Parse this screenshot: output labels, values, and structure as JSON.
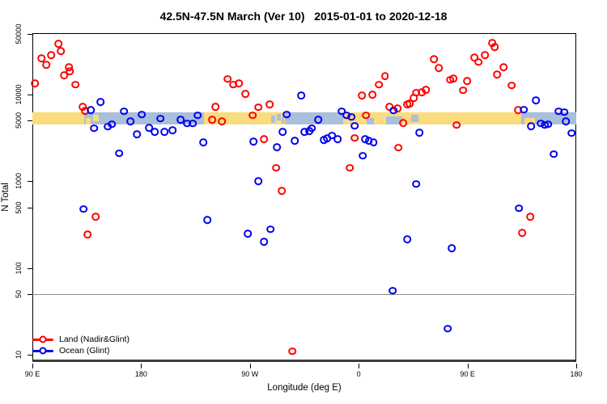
{
  "chart_data": {
    "type": "scatter",
    "title": "42.5N-47.5N March (Ver 10)   2015-01-01 to 2020-12-18",
    "xlabel": "Longitude (deg E)",
    "ylabel": "N Total",
    "x_axis": {
      "description": "longitude axis spanning 450 degrees eastward starting at 90E",
      "range_deg": [
        0,
        450
      ],
      "ticks": [
        {
          "deg": 0,
          "label": "90 E"
        },
        {
          "deg": 90,
          "label": "180"
        },
        {
          "deg": 180,
          "label": "90 W"
        },
        {
          "deg": 270,
          "label": "0"
        },
        {
          "deg": 360,
          "label": "90 E"
        },
        {
          "deg": 450,
          "label": "180"
        }
      ]
    },
    "y_axis": {
      "scale": "log10",
      "range": [
        8.2,
        51200
      ],
      "ticks": [
        {
          "v": 50000,
          "label": "50000"
        },
        {
          "v": 10000,
          "label": "10000"
        },
        {
          "v": 5000,
          "label": "5000"
        },
        {
          "v": 1000,
          "label": "1000"
        },
        {
          "v": 500,
          "label": "500"
        },
        {
          "v": 100,
          "label": "100"
        },
        {
          "v": 50,
          "label": "50"
        },
        {
          "v": 10,
          "label": "10"
        }
      ]
    },
    "grid": "off",
    "reference_line": {
      "v": 50,
      "color": "#8a8a8a"
    },
    "surface_band": {
      "v_top": 6300,
      "v_bottom": 4500,
      "land_color": "#FADC7E",
      "ocean_color": "#A9BFDB",
      "segments": [
        {
          "from": 0,
          "to": 43,
          "type": "land"
        },
        {
          "from": 43,
          "to": 142,
          "type": "ocean"
        },
        {
          "from": 142,
          "to": 209,
          "type": "land"
        },
        {
          "from": 209,
          "to": 257,
          "type": "ocean"
        },
        {
          "from": 257,
          "to": 404.5,
          "type": "land"
        },
        {
          "from": 404.5,
          "to": 450,
          "type": "ocean"
        }
      ],
      "specks": [
        {
          "from": 44,
          "to": 48.5,
          "type": "land",
          "top": 0.5,
          "height": 0.5
        },
        {
          "from": 50,
          "to": 55,
          "type": "land",
          "top": 0.2,
          "height": 0.55
        },
        {
          "from": 197.5,
          "to": 201,
          "type": "ocean",
          "top": 0.3,
          "height": 0.55
        },
        {
          "from": 202.5,
          "to": 205.5,
          "type": "ocean",
          "top": 0.15,
          "height": 0.5
        },
        {
          "from": 206,
          "to": 208.5,
          "type": "ocean",
          "top": 0.4,
          "height": 0.5
        },
        {
          "from": 276.6,
          "to": 282.6,
          "type": "ocean",
          "top": 0.45,
          "height": 0.55
        },
        {
          "from": 292.6,
          "to": 306,
          "type": "ocean",
          "top": 0.35,
          "height": 0.65
        },
        {
          "from": 313.4,
          "to": 319.5,
          "type": "ocean",
          "top": 0.2,
          "height": 0.6
        },
        {
          "from": 407,
          "to": 416,
          "type": "land",
          "top": 0.5,
          "height": 0.5
        }
      ]
    },
    "legend": [
      {
        "label": "Land (Nadir&Glint)"
      },
      {
        "label": "Ocean (Glint)"
      }
    ],
    "series": [
      {
        "name": "Land (Nadir&Glint)",
        "color": "#FF0000",
        "marker": "open-circle",
        "points": [
          [
            2.0,
            13500
          ],
          [
            7.4,
            26300
          ],
          [
            11.4,
            22200
          ],
          [
            15.4,
            28700
          ],
          [
            21.4,
            38700
          ],
          [
            23.4,
            31900
          ],
          [
            26.1,
            16800
          ],
          [
            30.1,
            20800
          ],
          [
            30.8,
            18700
          ],
          [
            35.5,
            13000
          ],
          [
            41.5,
            7260
          ],
          [
            43.5,
            6530
          ],
          [
            45.5,
            245
          ],
          [
            52.2,
            390
          ],
          [
            148.7,
            5150
          ],
          [
            151.3,
            7260
          ],
          [
            156.7,
            4920
          ],
          [
            161.4,
            15100
          ],
          [
            166.1,
            13100
          ],
          [
            170.8,
            13400
          ],
          [
            176.1,
            10200
          ],
          [
            182.2,
            5760
          ],
          [
            186.8,
            7140
          ],
          [
            191.5,
            3050
          ],
          [
            196.2,
            7750
          ],
          [
            201.6,
            1430
          ],
          [
            206.3,
            780
          ],
          [
            215.0,
            11
          ],
          [
            262.5,
            1430
          ],
          [
            266.5,
            3160
          ],
          [
            272.5,
            9800
          ],
          [
            275.9,
            5760
          ],
          [
            281.2,
            10000
          ],
          [
            286.6,
            13000
          ],
          [
            291.9,
            16400
          ],
          [
            295.3,
            7260
          ],
          [
            302.0,
            6950
          ],
          [
            302.7,
            2440
          ],
          [
            306.7,
            4700
          ],
          [
            310.0,
            7750
          ],
          [
            312.0,
            7900
          ],
          [
            315.4,
            9200
          ],
          [
            317.4,
            10500
          ],
          [
            322.1,
            10700
          ],
          [
            325.4,
            11400
          ],
          [
            332.1,
            25800
          ],
          [
            336.2,
            20300
          ],
          [
            345.5,
            14800
          ],
          [
            348.2,
            15400
          ],
          [
            350.9,
            4450
          ],
          [
            356.3,
            11200
          ],
          [
            359.6,
            14400
          ],
          [
            365.7,
            26900
          ],
          [
            369.0,
            23800
          ],
          [
            374.4,
            28700
          ],
          [
            380.4,
            39600
          ],
          [
            382.4,
            35600
          ],
          [
            384.4,
            17100
          ],
          [
            389.8,
            20800
          ],
          [
            396.5,
            12800
          ],
          [
            401.8,
            6600
          ],
          [
            405.2,
            255
          ],
          [
            411.9,
            390
          ]
        ]
      },
      {
        "name": "Ocean (Glint)",
        "color": "#0000EE",
        "marker": "open-circle",
        "points": [
          [
            42.2,
            480
          ],
          [
            48.2,
            6670
          ],
          [
            50.9,
            4080
          ],
          [
            56.3,
            8260
          ],
          [
            62.3,
            4260
          ],
          [
            65.6,
            4550
          ],
          [
            71.7,
            2110
          ],
          [
            75.7,
            6400
          ],
          [
            81.0,
            4920
          ],
          [
            86.4,
            3490
          ],
          [
            90.4,
            5890
          ],
          [
            96.4,
            4140
          ],
          [
            101.1,
            3740
          ],
          [
            105.8,
            5280
          ],
          [
            109.2,
            3740
          ],
          [
            115.9,
            3900
          ],
          [
            122.5,
            5160
          ],
          [
            127.9,
            4650
          ],
          [
            132.6,
            4650
          ],
          [
            136.6,
            5760
          ],
          [
            141.3,
            2800
          ],
          [
            144.6,
            360
          ],
          [
            178.1,
            250
          ],
          [
            182.8,
            2880
          ],
          [
            186.8,
            1010
          ],
          [
            191.5,
            200
          ],
          [
            196.9,
            280
          ],
          [
            202.3,
            2480
          ],
          [
            206.9,
            3740
          ],
          [
            210.3,
            5890
          ],
          [
            217.0,
            2940
          ],
          [
            222.3,
            9800
          ],
          [
            225.0,
            3740
          ],
          [
            229.0,
            3820
          ],
          [
            231.0,
            4080
          ],
          [
            236.4,
            5160
          ],
          [
            241.1,
            3000
          ],
          [
            243.8,
            3130
          ],
          [
            247.8,
            3390
          ],
          [
            252.5,
            3070
          ],
          [
            255.8,
            6400
          ],
          [
            259.8,
            5760
          ],
          [
            263.8,
            5520
          ],
          [
            266.5,
            4360
          ],
          [
            273.2,
            1980
          ],
          [
            275.2,
            3070
          ],
          [
            278.5,
            2940
          ],
          [
            282.5,
            2820
          ],
          [
            298.0,
            55
          ],
          [
            298.6,
            6550
          ],
          [
            310.0,
            215
          ],
          [
            317.4,
            930
          ],
          [
            320.1,
            3640
          ],
          [
            343.5,
            20
          ],
          [
            346.9,
            170
          ],
          [
            402.4,
            490
          ],
          [
            406.5,
            6700
          ],
          [
            412.5,
            4300
          ],
          [
            416.5,
            8630
          ],
          [
            420.5,
            4650
          ],
          [
            423.9,
            4450
          ],
          [
            426.6,
            4550
          ],
          [
            431.3,
            2060
          ],
          [
            435.3,
            6400
          ],
          [
            440.0,
            6270
          ],
          [
            441.3,
            4920
          ],
          [
            446.0,
            3590
          ]
        ]
      }
    ]
  }
}
